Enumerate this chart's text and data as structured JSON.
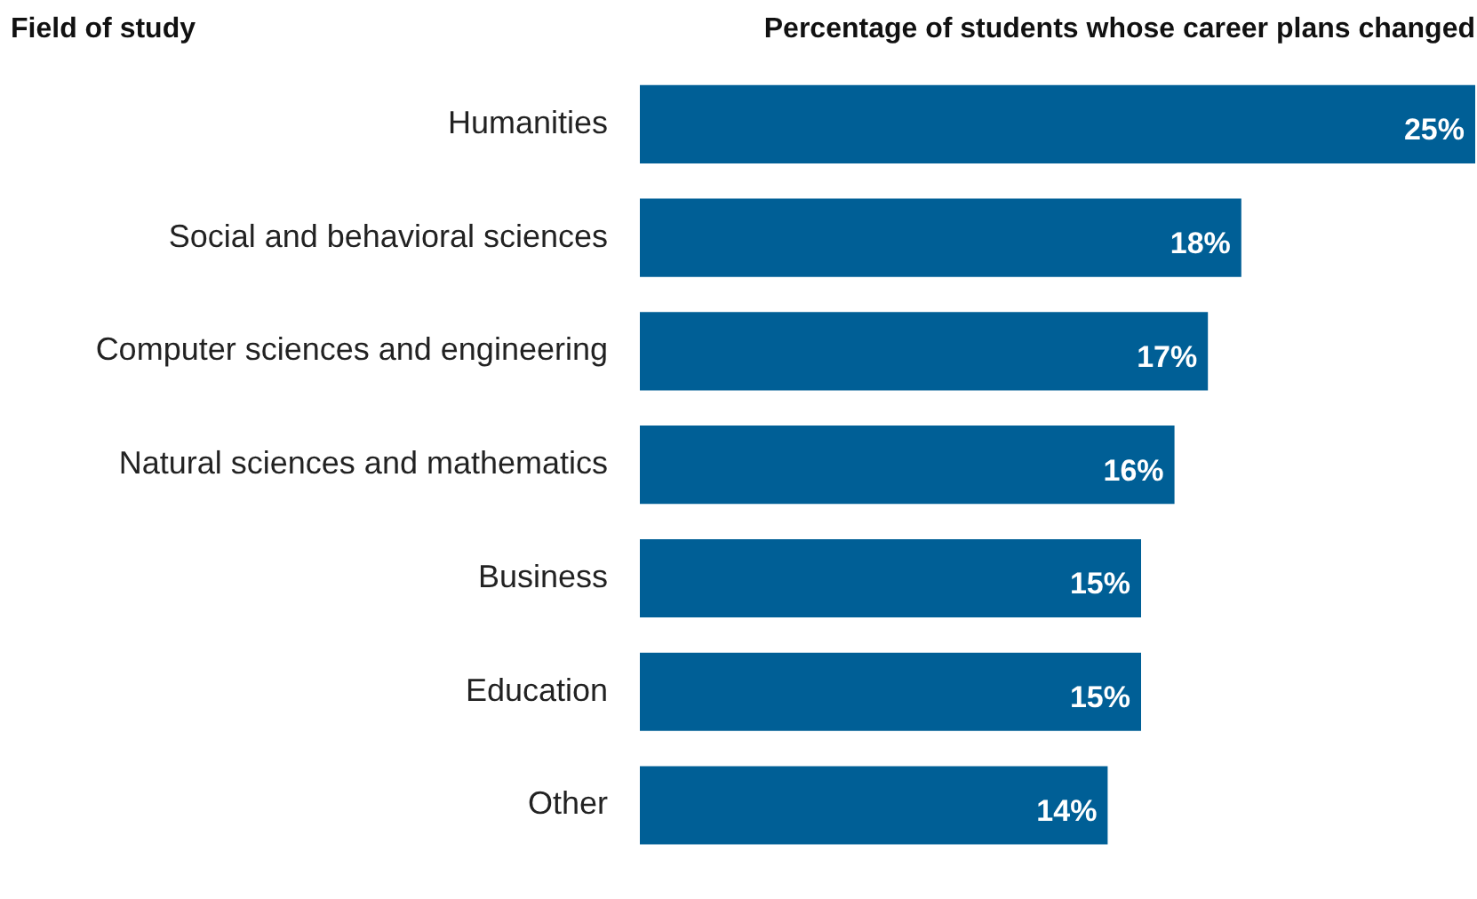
{
  "chart_data": {
    "type": "bar",
    "orientation": "horizontal",
    "title": "Percentage of students whose career plans changed",
    "ylabel": "Field of study",
    "categories": [
      "Humanities",
      "Social and behavioral sciences",
      "Computer sciences and engineering",
      "Natural sciences and mathematics",
      "Business",
      "Education",
      "Other"
    ],
    "values": [
      25,
      18,
      17,
      16,
      15,
      15,
      14
    ],
    "color": "#005f96",
    "value_labels": [
      "25%",
      "18%",
      "17%",
      "16%",
      "15%",
      "15%",
      "14%"
    ],
    "grid": false,
    "legend": false
  }
}
